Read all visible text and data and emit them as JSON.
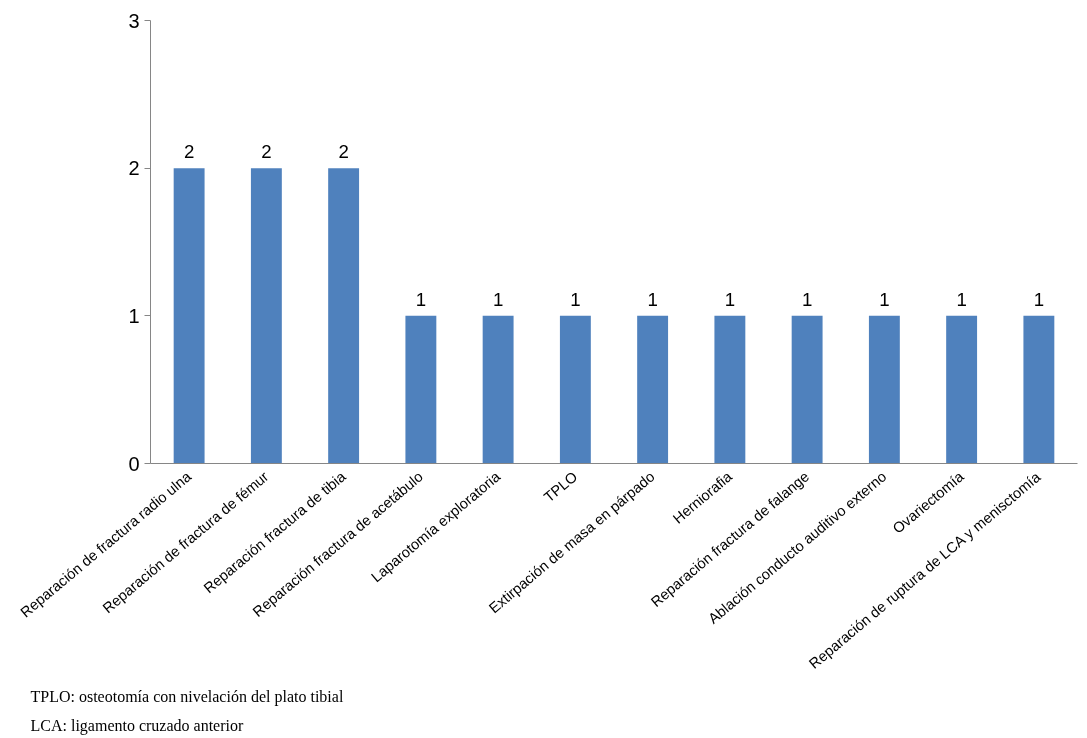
{
  "chart_data": {
    "type": "bar",
    "categories": [
      "Reparación de fractura radio ulna",
      "Reparación de fractura de fémur",
      "Reparación fractura de tibia",
      "Reparación fractura de acetábulo",
      "Laparotomía exploratoria",
      "TPLO",
      "Extirpación de masa en párpado",
      "Herniorafia",
      "Reparación fractura de falange",
      "Ablación conducto auditivo externo",
      "Ovariectomía",
      "Reparación de ruptura de LCA y menisctomía"
    ],
    "values": [
      2,
      2,
      2,
      1,
      1,
      1,
      1,
      1,
      1,
      1,
      1,
      1
    ],
    "color": "#4f81bd",
    "ylim": [
      0,
      3
    ],
    "yticks": [
      0,
      1,
      2,
      3
    ],
    "data_labels": true,
    "grid": false,
    "annotations": [
      "TPLO: osteotomía con nivelación del plato tibial",
      "LCA: ligamento cruzado anterior"
    ]
  }
}
